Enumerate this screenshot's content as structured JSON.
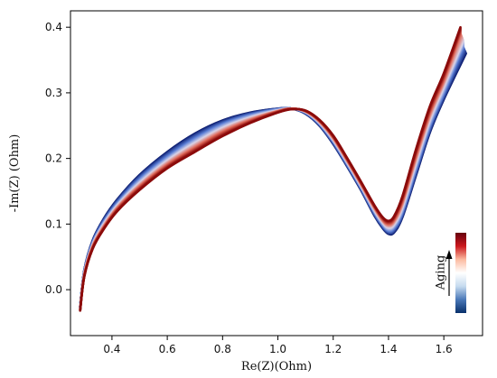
{
  "chart_data": {
    "type": "line",
    "title": "",
    "xlabel": "Re(Z)(Ohm)",
    "ylabel": "-Im(Z) (Ohm)",
    "xlim": [
      0.25,
      1.74
    ],
    "ylim": [
      -0.07,
      0.425
    ],
    "xticks": [
      {
        "value": 0.4,
        "label": "0.4"
      },
      {
        "value": 0.6,
        "label": "0.6"
      },
      {
        "value": 0.8,
        "label": "0.8"
      },
      {
        "value": 1.0,
        "label": "1.0"
      },
      {
        "value": 1.2,
        "label": "1.2"
      },
      {
        "value": 1.4,
        "label": "1.4"
      },
      {
        "value": 1.6,
        "label": "1.6"
      }
    ],
    "yticks": [
      {
        "value": 0.0,
        "label": "0.0"
      },
      {
        "value": 0.1,
        "label": "0.1"
      },
      {
        "value": 0.2,
        "label": "0.2"
      },
      {
        "value": 0.3,
        "label": "0.3"
      },
      {
        "value": 0.4,
        "label": "0.4"
      }
    ],
    "grid": false,
    "colorbar": {
      "label": "Aging",
      "colormap": [
        "#08306b",
        "#4a78b8",
        "#c6dbef",
        "#ffffff",
        "#fcbba1",
        "#cb181d",
        "#67000d"
      ],
      "arrow": "up",
      "placement": "bottom-right"
    },
    "series": [
      {
        "color": "#0a1a6e",
        "x": [
          0.285,
          0.3,
          0.33,
          0.37,
          0.42,
          0.5,
          0.6,
          0.7,
          0.8,
          0.9,
          1.0,
          1.05,
          1.1,
          1.15,
          1.2,
          1.25,
          1.3,
          1.35,
          1.38,
          1.4,
          1.42,
          1.45,
          1.5,
          1.55,
          1.6,
          1.68
        ],
        "y": [
          -0.025,
          0.03,
          0.075,
          0.108,
          0.138,
          0.175,
          0.21,
          0.238,
          0.258,
          0.27,
          0.276,
          0.276,
          0.268,
          0.25,
          0.222,
          0.188,
          0.152,
          0.112,
          0.093,
          0.085,
          0.087,
          0.11,
          0.175,
          0.24,
          0.29,
          0.36
        ]
      },
      {
        "color": "#5b7fd6",
        "x": [
          0.285,
          0.3,
          0.33,
          0.37,
          0.42,
          0.5,
          0.6,
          0.7,
          0.8,
          0.9,
          1.0,
          1.05,
          1.1,
          1.15,
          1.2,
          1.25,
          1.3,
          1.35,
          1.38,
          1.4,
          1.42,
          1.45,
          1.5,
          1.55,
          1.6,
          1.67
        ],
        "y": [
          -0.027,
          0.027,
          0.071,
          0.103,
          0.132,
          0.168,
          0.202,
          0.23,
          0.252,
          0.266,
          0.275,
          0.276,
          0.27,
          0.253,
          0.226,
          0.192,
          0.156,
          0.117,
          0.098,
          0.09,
          0.094,
          0.118,
          0.185,
          0.25,
          0.3,
          0.37
        ]
      },
      {
        "color": "#d9d4e8",
        "x": [
          0.285,
          0.3,
          0.33,
          0.37,
          0.42,
          0.5,
          0.6,
          0.7,
          0.8,
          0.9,
          1.0,
          1.05,
          1.1,
          1.15,
          1.2,
          1.25,
          1.3,
          1.35,
          1.38,
          1.4,
          1.42,
          1.45,
          1.5,
          1.55,
          1.6,
          1.67
        ],
        "y": [
          -0.028,
          0.025,
          0.068,
          0.099,
          0.128,
          0.162,
          0.196,
          0.223,
          0.246,
          0.262,
          0.273,
          0.276,
          0.271,
          0.255,
          0.229,
          0.195,
          0.159,
          0.121,
          0.102,
          0.095,
          0.1,
          0.126,
          0.195,
          0.26,
          0.31,
          0.38
        ]
      },
      {
        "color": "#e06a5a",
        "x": [
          0.285,
          0.3,
          0.33,
          0.37,
          0.42,
          0.5,
          0.6,
          0.7,
          0.8,
          0.9,
          1.0,
          1.05,
          1.1,
          1.15,
          1.2,
          1.25,
          1.3,
          1.35,
          1.38,
          1.4,
          1.42,
          1.45,
          1.5,
          1.55,
          1.6,
          1.66
        ],
        "y": [
          -0.03,
          0.022,
          0.065,
          0.095,
          0.124,
          0.157,
          0.19,
          0.216,
          0.24,
          0.258,
          0.272,
          0.276,
          0.272,
          0.257,
          0.232,
          0.198,
          0.162,
          0.125,
          0.106,
          0.1,
          0.106,
          0.134,
          0.205,
          0.27,
          0.32,
          0.39
        ]
      },
      {
        "color": "#8b0a0a",
        "x": [
          0.285,
          0.3,
          0.33,
          0.37,
          0.42,
          0.5,
          0.6,
          0.7,
          0.8,
          0.9,
          1.0,
          1.05,
          1.1,
          1.15,
          1.2,
          1.25,
          1.3,
          1.35,
          1.38,
          1.4,
          1.42,
          1.45,
          1.5,
          1.55,
          1.6,
          1.66
        ],
        "y": [
          -0.032,
          0.02,
          0.062,
          0.092,
          0.12,
          0.152,
          0.185,
          0.21,
          0.234,
          0.254,
          0.27,
          0.275,
          0.273,
          0.259,
          0.235,
          0.201,
          0.165,
          0.128,
          0.11,
          0.105,
          0.112,
          0.142,
          0.215,
          0.28,
          0.33,
          0.4
        ]
      }
    ]
  }
}
